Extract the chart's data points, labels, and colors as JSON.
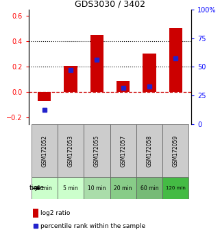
{
  "title": "GDS3030 / 3402",
  "samples": [
    "GSM172052",
    "GSM172053",
    "GSM172055",
    "GSM172057",
    "GSM172058",
    "GSM172059"
  ],
  "time_labels": [
    "0 min",
    "5 min",
    "10 min",
    "20 min",
    "60 min",
    "120 min"
  ],
  "log2_ratio": [
    -0.07,
    0.205,
    0.45,
    0.09,
    0.305,
    0.505
  ],
  "percentile_rank": [
    12.5,
    47.5,
    56.5,
    31.5,
    32.5,
    57.5
  ],
  "ylim_left": [
    -0.25,
    0.65
  ],
  "ylim_right": [
    0,
    100
  ],
  "yticks_left": [
    -0.2,
    0.0,
    0.2,
    0.4,
    0.6
  ],
  "yticks_right": [
    0,
    25,
    50,
    75,
    100
  ],
  "bar_color": "#cc0000",
  "dot_color": "#2222cc",
  "hline_color": "#cc0000",
  "dotted_vals": [
    0.2,
    0.4
  ],
  "time_bg_colors": [
    "#ccffcc",
    "#ccffcc",
    "#aaddaa",
    "#88cc88",
    "#77bb77",
    "#44bb44"
  ],
  "sample_bg_color": "#cccccc",
  "legend_bar_label": "log2 ratio",
  "legend_dot_label": "percentile rank within the sample",
  "bar_width": 0.5
}
